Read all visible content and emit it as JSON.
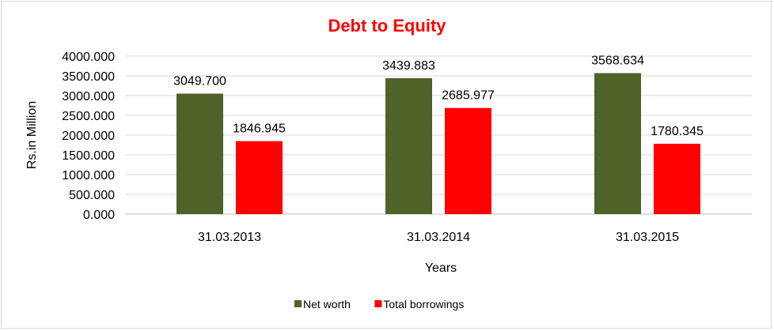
{
  "chart_data": {
    "type": "bar",
    "title": "Debt to Equity",
    "xlabel": "Years",
    "ylabel": "Rs.in Million",
    "categories": [
      "31.03.2013",
      "31.03.2014",
      "31.03.2015"
    ],
    "series": [
      {
        "name": "Net worth",
        "color": "#4f6228",
        "values": [
          3049.7,
          3439.883,
          3568.634
        ],
        "labels": [
          "3049.700",
          "3439.883",
          "3568.634"
        ]
      },
      {
        "name": "Total borrowings",
        "color": "#ff0000",
        "values": [
          1846.945,
          2685.977,
          1780.345
        ],
        "labels": [
          "1846.945",
          "2685.977",
          "1780.345"
        ]
      }
    ],
    "ylim": [
      0,
      4000
    ],
    "yticks": [
      "0.000",
      "500.000",
      "1000.000",
      "1500.000",
      "2000.000",
      "2500.000",
      "3000.000",
      "3500.000",
      "4000.000"
    ],
    "grid": true,
    "legend_position": "bottom"
  }
}
